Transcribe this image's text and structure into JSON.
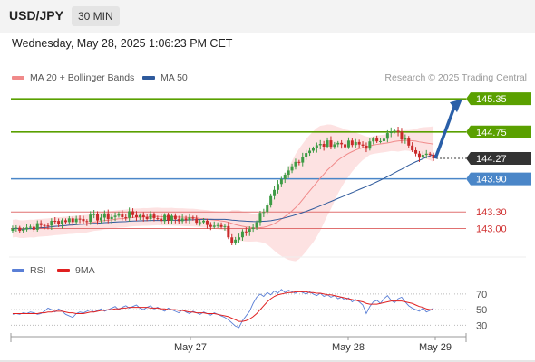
{
  "header": {
    "symbol": "USD/JPY",
    "timeframe": "30 MIN",
    "datetime": "Wednesday, May 28, 2025 1:06:23 PM CET"
  },
  "legend": {
    "ma20": "MA 20 + Bollinger Bands",
    "ma50": "MA 50",
    "rsi": "RSI",
    "ma9": "9MA",
    "copyright": "Research © 2025 Trading Central"
  },
  "colors": {
    "resistance": "#5aa000",
    "support": "#4a86c8",
    "target_low": "#e07070",
    "price_badge": "#333333",
    "arrow": "#2a5fa8",
    "candle_up": "#3e9b45",
    "candle_down": "#c92a2a",
    "ma20": "#f08a8a",
    "ma50": "#2f5a9c",
    "bb_fill": "#fde2e2",
    "rsi": "#5a7fd6",
    "rsi_ma": "#e02020"
  },
  "chart_data": [
    {
      "type": "candlestick",
      "title": "USD/JPY",
      "timeframe": "30 MIN",
      "ylim": [
        142.55,
        145.5
      ],
      "x_ticks": [
        "May 27",
        "May 28",
        "May 29"
      ],
      "last_price": 144.27,
      "levels": [
        {
          "label": "145.35",
          "value": 145.35,
          "kind": "resistance"
        },
        {
          "label": "144.75",
          "value": 144.75,
          "kind": "resistance"
        },
        {
          "label": "143.90",
          "value": 143.9,
          "kind": "support"
        },
        {
          "label": "143.30",
          "value": 143.3,
          "kind": "target"
        },
        {
          "label": "143.00",
          "value": 143.0,
          "kind": "target"
        }
      ],
      "price_label": "144.27",
      "forecast_arrow": {
        "from": 144.27,
        "to": 145.35
      }
    },
    {
      "type": "line",
      "title": "RSI",
      "ylim": [
        20,
        85
      ],
      "y_ticks": [
        30,
        50,
        70
      ],
      "series": [
        {
          "name": "RSI",
          "values": [
            44,
            45,
            44,
            46,
            45,
            47,
            46,
            44,
            45,
            48,
            52,
            50,
            47,
            51,
            48,
            44,
            42,
            40,
            45,
            47,
            46,
            48,
            50,
            47,
            49,
            51,
            48,
            50,
            52,
            54,
            50,
            53,
            55,
            52,
            54,
            56,
            52,
            50,
            53,
            55,
            51,
            53,
            50,
            48,
            52,
            50,
            48,
            46,
            50,
            47,
            45,
            48,
            46,
            44,
            47,
            45,
            43,
            46,
            44,
            42,
            40,
            37,
            33,
            29,
            27,
            36,
            42,
            48,
            58,
            66,
            70,
            67,
            72,
            69,
            74,
            71,
            76,
            72,
            75,
            73,
            71,
            74,
            72,
            70,
            73,
            70,
            68,
            71,
            67,
            69,
            66,
            68,
            64,
            66,
            62,
            65,
            60,
            63,
            60,
            56,
            45,
            54,
            60,
            62,
            58,
            64,
            68,
            62,
            59,
            64,
            66,
            60,
            55,
            52,
            50,
            48,
            52,
            47,
            49,
            52
          ]
        },
        {
          "name": "9MA",
          "values": [
            45,
            45,
            45,
            45,
            45,
            45,
            45,
            45,
            46,
            46,
            47,
            47,
            48,
            48,
            48,
            47,
            46,
            46,
            45,
            45,
            45,
            46,
            47,
            47,
            48,
            49,
            49,
            50,
            50,
            51,
            51,
            52,
            52,
            53,
            53,
            53,
            53,
            53,
            53,
            52,
            52,
            52,
            51,
            51,
            50,
            50,
            50,
            49,
            49,
            48,
            47,
            47,
            46,
            46,
            46,
            45,
            45,
            45,
            44,
            43,
            42,
            41,
            39,
            37,
            35,
            35,
            36,
            38,
            41,
            45,
            50,
            55,
            60,
            64,
            67,
            69,
            70,
            71,
            72,
            72,
            73,
            73,
            73,
            73,
            72,
            72,
            71,
            71,
            70,
            69,
            69,
            68,
            67,
            66,
            65,
            64,
            63,
            62,
            61,
            60,
            58,
            57,
            57,
            57,
            58,
            59,
            60,
            61,
            61,
            61,
            61,
            60,
            59,
            58,
            56,
            54,
            53,
            51,
            50,
            50
          ]
        }
      ]
    }
  ]
}
